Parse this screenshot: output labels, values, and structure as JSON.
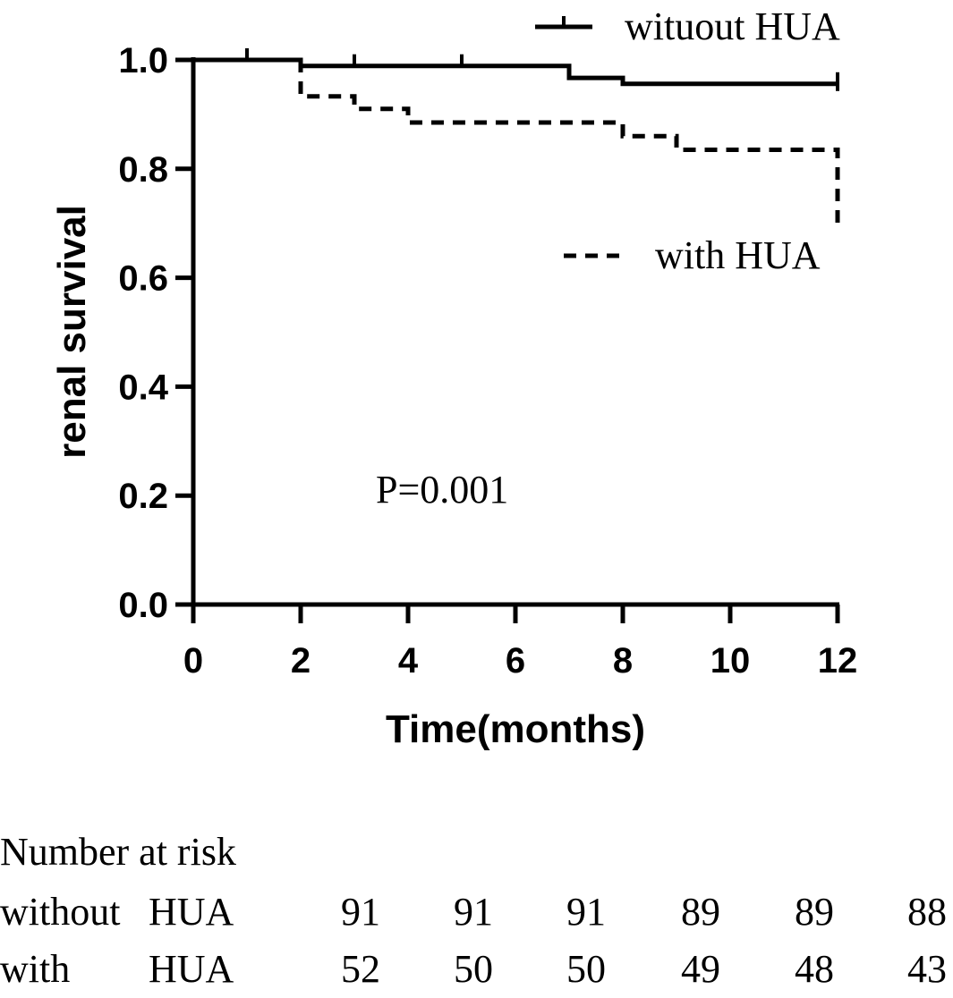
{
  "chart_data": {
    "type": "line",
    "subtype": "kaplan-meier",
    "xlabel": "Time(months)",
    "ylabel": "renal survival",
    "xlim": [
      0,
      12
    ],
    "ylim": [
      0,
      1.0
    ],
    "x_ticks": [
      "0",
      "2",
      "4",
      "6",
      "8",
      "10",
      "12"
    ],
    "y_ticks": [
      "0.0",
      "0.2",
      "0.4",
      "0.6",
      "0.8",
      "1.0"
    ],
    "annotation": "P=0.001",
    "series": [
      {
        "name": "wituout HUA",
        "style": "solid",
        "steps": [
          {
            "x": 0,
            "y": 1.0
          },
          {
            "x": 2,
            "y": 0.989
          },
          {
            "x": 7,
            "y": 0.967
          },
          {
            "x": 8,
            "y": 0.956
          },
          {
            "x": 12,
            "y": 0.956
          }
        ],
        "censor_x": [
          1,
          3,
          5,
          12
        ]
      },
      {
        "name": "with HUA",
        "style": "dashed",
        "steps": [
          {
            "x": 0,
            "y": 1.0
          },
          {
            "x": 2,
            "y": 0.933
          },
          {
            "x": 3,
            "y": 0.91
          },
          {
            "x": 4,
            "y": 0.885
          },
          {
            "x": 8,
            "y": 0.86
          },
          {
            "x": 9,
            "y": 0.835
          },
          {
            "x": 12,
            "y": 0.835
          },
          {
            "x": 12,
            "y": 0.7
          }
        ],
        "censor_x": []
      }
    ],
    "risk_table": {
      "title": "Number at risk",
      "rows": [
        {
          "label_a": "without",
          "label_b": "HUA",
          "values": [
            "91",
            "91",
            "91",
            "89",
            "89",
            "88"
          ]
        },
        {
          "label_a": "with",
          "label_b": "HUA",
          "values": [
            "52",
            "50",
            "50",
            "49",
            "48",
            "43"
          ]
        }
      ]
    }
  }
}
